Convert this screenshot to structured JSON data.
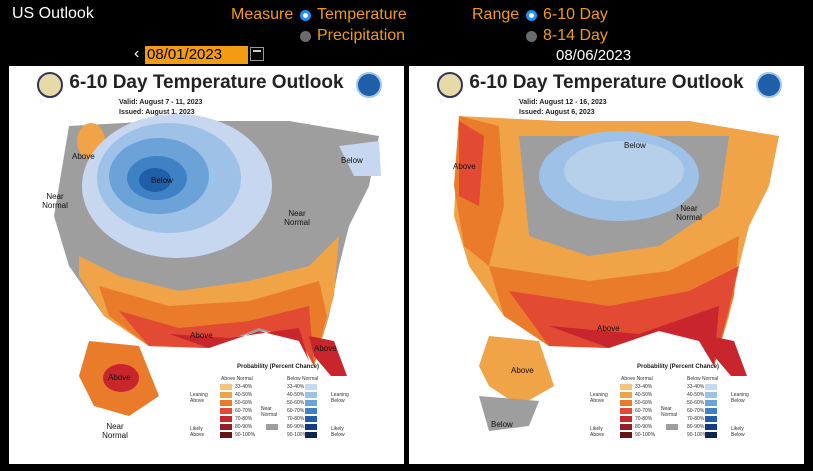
{
  "app": {
    "title": "US Outlook"
  },
  "measure": {
    "label": "Measure",
    "options": [
      {
        "label": "Temperature",
        "selected": true
      },
      {
        "label": "Precipitation",
        "selected": false
      }
    ]
  },
  "range": {
    "label": "Range",
    "options": [
      {
        "label": "6-10 Day",
        "selected": true
      },
      {
        "label": "8-14 Day",
        "selected": false
      }
    ]
  },
  "date_picker": {
    "value": "08/01/2023",
    "prev_icon": "chevron-left-icon",
    "calendar_icon": "calendar-icon"
  },
  "second_date": "08/06/2023",
  "maps": [
    {
      "title": "6-10 Day Temperature Outlook",
      "valid": "Valid:  August 7 - 11, 2023",
      "issued": "Issued:  August 1, 2023",
      "labels": [
        "Above",
        "Below",
        "Below",
        "Near Normal",
        "Near Normal",
        "Above",
        "Above",
        "Above",
        "Near Normal"
      ]
    },
    {
      "title": "6-10 Day Temperature Outlook",
      "valid": "Valid:  August 12 - 16, 2023",
      "issued": "Issued:  August 6, 2023",
      "labels": [
        "Above",
        "Below",
        "Near Normal",
        "Above",
        "Above",
        "Below"
      ]
    }
  ],
  "legend": {
    "title": "Probability (Percent Chance)",
    "above_header": "Above Normal",
    "below_header": "Below Normal",
    "leaning_above": "Leaning Above",
    "likely_above": "Likely Above",
    "leaning_below": "Leaning Below",
    "likely_below": "Likely Below",
    "near_normal": "Near Normal",
    "above_ranges": [
      "33-40%",
      "40-50%",
      "50-60%",
      "60-70%",
      "70-80%",
      "80-90%",
      "90-100%"
    ],
    "below_ranges": [
      "33-40%",
      "40-50%",
      "50-60%",
      "60-70%",
      "70-80%",
      "80-90%",
      "90-100%"
    ],
    "above_colors": [
      "#f4c37d",
      "#f0a347",
      "#ea7b2b",
      "#e34a33",
      "#c9252c",
      "#991d24",
      "#6b1317"
    ],
    "below_colors": [
      "#c6d7ef",
      "#9ec2e7",
      "#6ba3d9",
      "#3e82c5",
      "#1f5ea8",
      "#123e7f",
      "#0a2452"
    ],
    "near_color": "#9e9e9e"
  }
}
